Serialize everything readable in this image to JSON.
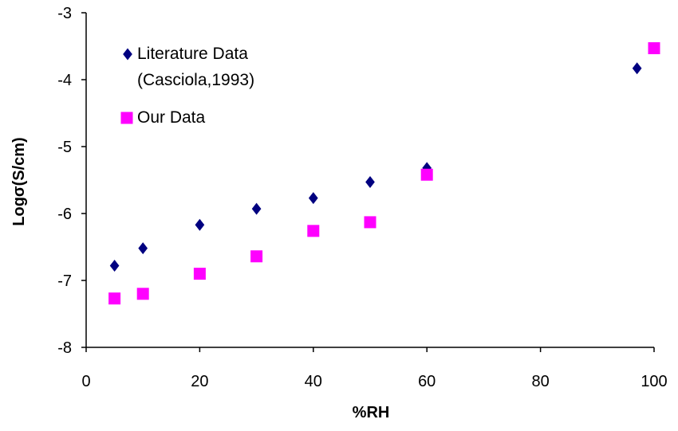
{
  "chart_data": {
    "type": "scatter",
    "xlabel": "%RH",
    "ylabel": "Logσ(S/cm)",
    "xlim": [
      0,
      100
    ],
    "ylim": [
      -8,
      -3
    ],
    "x_ticks": [
      0,
      20,
      40,
      60,
      80,
      100
    ],
    "y_ticks": [
      -8,
      -7,
      -6,
      -5,
      -4,
      -3
    ],
    "x_tick_labels": [
      "0",
      "20",
      "40",
      "60",
      "80",
      "100"
    ],
    "y_tick_labels": [
      "-8",
      "-7",
      "-6",
      "-5",
      "-4",
      "-3"
    ],
    "grid": false,
    "legend_position": "top-left",
    "series": [
      {
        "name": "Literature Data (Casciola,1993)",
        "legend_lines": [
          "Literature Data",
          "(Casciola,1993)"
        ],
        "marker": "diamond",
        "color": "#000080",
        "points": [
          {
            "x": 5,
            "y": -6.78
          },
          {
            "x": 10,
            "y": -6.52
          },
          {
            "x": 20,
            "y": -6.17
          },
          {
            "x": 30,
            "y": -5.93
          },
          {
            "x": 40,
            "y": -5.77
          },
          {
            "x": 50,
            "y": -5.53
          },
          {
            "x": 60,
            "y": -5.32
          },
          {
            "x": 97,
            "y": -3.83
          }
        ]
      },
      {
        "name": "Our Data",
        "legend_lines": [
          "Our Data"
        ],
        "marker": "square",
        "color": "#ff00ff",
        "points": [
          {
            "x": 5,
            "y": -7.27
          },
          {
            "x": 10,
            "y": -7.2
          },
          {
            "x": 20,
            "y": -6.9
          },
          {
            "x": 30,
            "y": -6.64
          },
          {
            "x": 40,
            "y": -6.26
          },
          {
            "x": 50,
            "y": -6.13
          },
          {
            "x": 60,
            "y": -5.42
          },
          {
            "x": 100,
            "y": -3.53
          }
        ]
      }
    ]
  }
}
